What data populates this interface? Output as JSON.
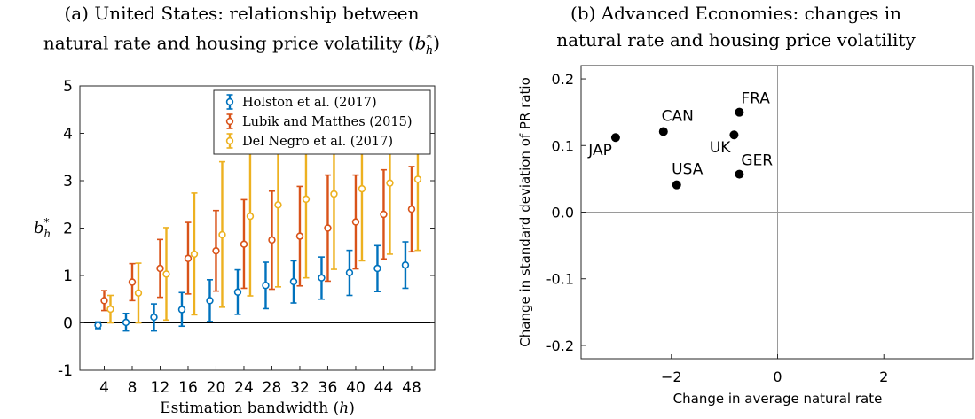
{
  "panel_a": {
    "title_line1": "(a) United States: relationship between",
    "title_line2_prefix": "natural rate and housing price volatility (",
    "title_sym": "b",
    "title_sub": "h",
    "title_sup": "*",
    "title_suffix": ")"
  },
  "panel_b": {
    "title_line1": "(b) Advanced Economies: changes in",
    "title_line2": "natural rate and housing price volatility"
  },
  "chart_data": [
    {
      "type": "errorbar",
      "xlabel_text": "Estimation bandwidth (",
      "xlabel_sym": "h",
      "xlabel_suffix": ")",
      "ylabel_sym": "b",
      "ylabel_sub": "h",
      "ylabel_sup": "*",
      "categories": [
        4,
        8,
        12,
        16,
        20,
        24,
        28,
        32,
        36,
        40,
        44,
        48
      ],
      "ylim": [
        -1,
        5
      ],
      "yticks": [
        -1,
        0,
        1,
        2,
        3,
        4,
        5
      ],
      "ytick_labels": [
        "-1",
        "0",
        "1",
        "2",
        "3",
        "4",
        "5"
      ],
      "zero_line": true,
      "legend_position": "top-right",
      "series": [
        {
          "name": "Holston et al. (2017)",
          "color": "#0072BD",
          "values": [
            -0.05,
            0.01,
            0.12,
            0.28,
            0.47,
            0.65,
            0.79,
            0.87,
            0.95,
            1.06,
            1.15,
            1.22
          ],
          "lower": [
            -0.12,
            -0.17,
            -0.17,
            -0.07,
            0.03,
            0.18,
            0.3,
            0.42,
            0.5,
            0.58,
            0.66,
            0.73
          ],
          "upper": [
            0.02,
            0.2,
            0.4,
            0.64,
            0.91,
            1.12,
            1.28,
            1.31,
            1.39,
            1.53,
            1.63,
            1.71
          ]
        },
        {
          "name": "Lubik and Matthes (2015)",
          "color": "#D95319",
          "values": [
            0.47,
            0.86,
            1.15,
            1.36,
            1.52,
            1.66,
            1.75,
            1.83,
            2.0,
            2.13,
            2.29,
            2.4
          ],
          "lower": [
            0.26,
            0.47,
            0.54,
            0.61,
            0.67,
            0.73,
            0.71,
            0.78,
            0.88,
            1.14,
            1.35,
            1.5
          ],
          "upper": [
            0.68,
            1.25,
            1.76,
            2.12,
            2.37,
            2.6,
            2.78,
            2.88,
            3.12,
            3.12,
            3.23,
            3.3
          ]
        },
        {
          "name": "Del Negro et al. (2017)",
          "color": "#EDB120",
          "values": [
            0.29,
            0.63,
            1.03,
            1.45,
            1.86,
            2.25,
            2.49,
            2.61,
            2.72,
            2.83,
            2.95,
            3.03
          ],
          "lower": [
            0.0,
            0.0,
            0.06,
            0.17,
            0.33,
            0.57,
            0.76,
            0.95,
            1.13,
            1.31,
            1.45,
            1.53
          ],
          "upper": [
            0.58,
            1.26,
            2.01,
            2.74,
            3.4,
            4.1,
            4.35,
            4.46,
            4.6,
            4.7,
            4.75,
            4.8
          ]
        }
      ]
    },
    {
      "type": "scatter",
      "xlabel": "Change in average natural rate",
      "ylabel": "Change in standard deviation of PR ratio",
      "xlim": [
        -3.7,
        3.7
      ],
      "ylim": [
        -0.22,
        0.22
      ],
      "xticks": [
        -2,
        0,
        2
      ],
      "xtick_labels": [
        "−2",
        "0",
        "2"
      ],
      "yticks": [
        -0.2,
        -0.1,
        0.0,
        0.1,
        0.2
      ],
      "ytick_labels": [
        "-0.2",
        "-0.1",
        "0.0",
        "0.1",
        "0.2"
      ],
      "reference_lines": [
        "x=0",
        "y=0"
      ],
      "point_color": "#000000",
      "points": [
        {
          "label": "JAP",
          "x": -3.05,
          "y": 0.112,
          "label_side": "below-left"
        },
        {
          "label": "CAN",
          "x": -2.15,
          "y": 0.121,
          "label_side": "above"
        },
        {
          "label": "FRA",
          "x": -0.72,
          "y": 0.15,
          "label_side": "above-right"
        },
        {
          "label": "UK",
          "x": -0.82,
          "y": 0.116,
          "label_side": "below-left"
        },
        {
          "label": "GER",
          "x": -0.72,
          "y": 0.057,
          "label_side": "above-right"
        },
        {
          "label": "USA",
          "x": -1.9,
          "y": 0.041,
          "label_side": "above"
        }
      ]
    }
  ]
}
